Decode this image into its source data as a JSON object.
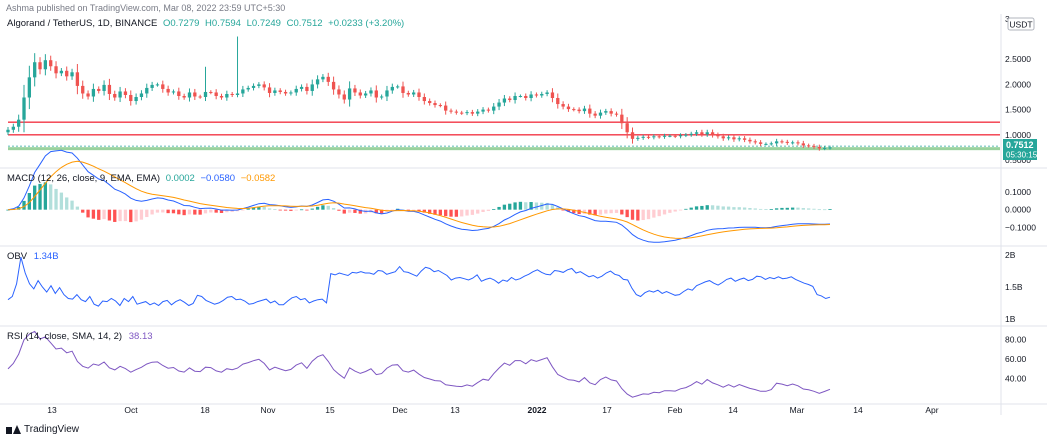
{
  "publisher": "Ashma published on TradingView.com, Mar 08, 2022 23:59 UTC+5:30",
  "footer_brand": "TradingView",
  "colors": {
    "up": "#26a69a",
    "down": "#ef5350",
    "macd": "#2962ff",
    "signal": "#ff9800",
    "obv": "#2962ff",
    "rsi": "#7e57c2",
    "hline": "#f23645",
    "support": "#81c784"
  },
  "chart_data": [
    {
      "type": "candlestick",
      "symbol": "Algorand / TetherUS, 1D, BINANCE",
      "ohlc_legend": {
        "O": "O0.7279",
        "H": "H0.7594",
        "L": "L0.7249",
        "C": "C0.7512",
        "change": "+0.0233 (+3.20%)"
      },
      "currency": "USDT",
      "price_badge": "0.7512",
      "countdown": "05:30:15",
      "y_ticks": [
        "3",
        "2.5000",
        "2.0000",
        "1.5000",
        "1.0000",
        "0.5000"
      ],
      "ylim": [
        0.5,
        3.0
      ],
      "horizontal_lines": [
        1.25,
        1.0
      ],
      "support_level": 0.725,
      "closes": [
        1.1,
        1.16,
        1.3,
        1.74,
        2.14,
        2.44,
        2.3,
        2.48,
        2.36,
        2.22,
        2.27,
        2.16,
        2.24,
        1.97,
        1.82,
        1.76,
        1.91,
        1.87,
        1.99,
        1.81,
        1.74,
        1.86,
        1.79,
        1.67,
        1.75,
        1.82,
        1.93,
        1.99,
        2.0,
        1.91,
        1.84,
        1.86,
        1.77,
        1.74,
        1.84,
        1.76,
        1.75,
        1.85,
        1.84,
        1.77,
        1.74,
        1.81,
        1.79,
        1.82,
        1.9,
        1.93,
        1.97,
        2.0,
        1.94,
        1.83,
        1.88,
        1.85,
        1.82,
        1.84,
        1.91,
        1.95,
        1.87,
        2.0,
        2.1,
        2.15,
        2.05,
        1.9,
        1.8,
        1.7,
        1.92,
        1.84,
        1.78,
        1.82,
        1.88,
        1.74,
        1.76,
        1.88,
        1.95,
        1.96,
        1.83,
        1.8,
        1.84,
        1.75,
        1.67,
        1.63,
        1.59,
        1.58,
        1.48,
        1.46,
        1.44,
        1.43,
        1.45,
        1.42,
        1.46,
        1.5,
        1.48,
        1.56,
        1.64,
        1.72,
        1.69,
        1.77,
        1.77,
        1.73,
        1.8,
        1.78,
        1.81,
        1.84,
        1.73,
        1.61,
        1.56,
        1.51,
        1.5,
        1.47,
        1.52,
        1.42,
        1.38,
        1.44,
        1.47,
        1.42,
        1.4,
        1.23,
        1.05,
        0.92,
        0.94,
        0.96,
        0.95,
        0.97,
        0.96,
        0.98,
        0.98,
        0.97,
        0.99,
        1.0,
        1.02,
        1.05,
        1.01,
        1.05,
        1.0,
        0.97,
        0.93,
        0.95,
        0.91,
        0.93,
        0.9,
        0.87,
        0.85,
        0.82,
        0.82,
        0.83,
        0.87,
        0.86,
        0.84,
        0.85,
        0.83,
        0.79,
        0.78,
        0.76,
        0.73,
        0.74,
        0.75
      ],
      "spikes": [
        {
          "index": 43,
          "high": 2.95
        },
        {
          "index": 37,
          "high": 2.35
        }
      ]
    },
    {
      "type": "histogram+line",
      "legend": "MACD (12, 26, close, 9, EMA, EMA)",
      "legend_values": [
        "0.0002",
        "−0.0580",
        "−0.0582"
      ],
      "y_ticks": [
        "0.1000",
        "0.0000",
        "−0.1000"
      ],
      "ylim": [
        -0.17,
        0.2
      ],
      "tick_values": [
        0.1,
        0.0,
        -0.1
      ]
    },
    {
      "type": "line",
      "legend": "OBV",
      "legend_values": [
        "1.34B"
      ],
      "y_ticks": [
        "2B",
        "1.5B",
        "1B"
      ],
      "ylim": [
        0.95,
        2.05
      ],
      "tick_values": [
        2.0,
        1.5,
        1.0
      ],
      "values": [
        1.3,
        1.35,
        1.55,
        1.97,
        1.72,
        1.55,
        1.47,
        1.6,
        1.5,
        1.42,
        1.52,
        1.4,
        1.49,
        1.38,
        1.32,
        1.31,
        1.38,
        1.3,
        1.27,
        1.35,
        1.23,
        1.2,
        1.28,
        1.27,
        1.32,
        1.28,
        1.21,
        1.32,
        1.27,
        1.35,
        1.23,
        1.25,
        1.27,
        1.22,
        1.25,
        1.21,
        1.27,
        1.29,
        1.22,
        1.27,
        1.3,
        1.26,
        1.21,
        1.24,
        1.37,
        1.35,
        1.29,
        1.26,
        1.23,
        1.25,
        1.29,
        1.34,
        1.35,
        1.3,
        1.31,
        1.28,
        1.23,
        1.24,
        1.27,
        1.29,
        1.31,
        1.25,
        1.28,
        1.22,
        1.22,
        1.28,
        1.33,
        1.35,
        1.3,
        1.32,
        1.25,
        1.28,
        1.3,
        1.31,
        1.25,
        1.71,
        1.69,
        1.72,
        1.7,
        1.68,
        1.73,
        1.72,
        1.74,
        1.72,
        1.72,
        1.7,
        1.76,
        1.75,
        1.7,
        1.72,
        1.74,
        1.82,
        1.74,
        1.73,
        1.7,
        1.67,
        1.75,
        1.81,
        1.79,
        1.74,
        1.76,
        1.72,
        1.68,
        1.61,
        1.64,
        1.65,
        1.63,
        1.61,
        1.64,
        1.69,
        1.59,
        1.62,
        1.64,
        1.61,
        1.56,
        1.61,
        1.59,
        1.65,
        1.61,
        1.63,
        1.67,
        1.7,
        1.74,
        1.77,
        1.73,
        1.7,
        1.69,
        1.76,
        1.75,
        1.73,
        1.77,
        1.79,
        1.72,
        1.74,
        1.7,
        1.66,
        1.68,
        1.64,
        1.67,
        1.72,
        1.75,
        1.7,
        1.68,
        1.62,
        1.61,
        1.48,
        1.38,
        1.35,
        1.41,
        1.44,
        1.42,
        1.45,
        1.4,
        1.43,
        1.4,
        1.37,
        1.38,
        1.43,
        1.47,
        1.45,
        1.52,
        1.55,
        1.58,
        1.6,
        1.56,
        1.53,
        1.57,
        1.62,
        1.64,
        1.59,
        1.62,
        1.64,
        1.6,
        1.62,
        1.67,
        1.66,
        1.62,
        1.65,
        1.63,
        1.66,
        1.63,
        1.64,
        1.66,
        1.62,
        1.59,
        1.56,
        1.54,
        1.51,
        1.38,
        1.36,
        1.32,
        1.34
      ]
    },
    {
      "type": "line",
      "legend": "RSI (14, close, SMA, 14, 2)",
      "legend_values": [
        "38.13"
      ],
      "y_ticks": [
        "80.00",
        "60.00",
        "40.00"
      ],
      "ylim": [
        18,
        90
      ],
      "tick_values": [
        80,
        60,
        40
      ]
    }
  ],
  "x_axis": {
    "labels": [
      "13",
      "Oct",
      "18",
      "Nov",
      "15",
      "Dec",
      "13",
      "2022",
      "17",
      "Feb",
      "14",
      "Mar",
      "14",
      "Apr"
    ],
    "bold": [
      "2022"
    ]
  }
}
